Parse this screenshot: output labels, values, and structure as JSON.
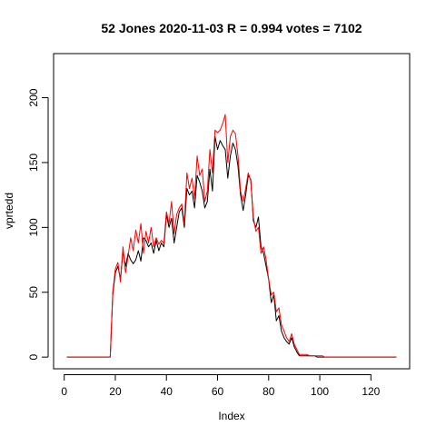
{
  "chart_data": {
    "type": "line",
    "title": "52 Jones 2020-11-03 R = 0.994 votes = 7102",
    "xlabel": "Index",
    "ylabel": "vprtedd",
    "xlim": [
      1,
      130
    ],
    "ylim": [
      0,
      225
    ],
    "xticks": [
      0,
      20,
      40,
      60,
      80,
      100,
      120
    ],
    "yticks": [
      0,
      50,
      100,
      150,
      200
    ],
    "grid": false,
    "legend": "none",
    "series": [
      {
        "color": "#000000",
        "values": [
          0,
          0,
          0,
          0,
          0,
          0,
          0,
          0,
          0,
          0,
          0,
          0,
          0,
          0,
          0,
          0,
          0,
          0,
          48,
          65,
          70,
          60,
          82,
          70,
          80,
          75,
          72,
          75,
          82,
          74,
          92,
          90,
          85,
          88,
          80,
          90,
          82,
          88,
          85,
          110,
          100,
          107,
          88,
          100,
          112,
          115,
          100,
          130,
          125,
          128,
          115,
          140,
          135,
          128,
          115,
          120,
          145,
          128,
          170,
          160,
          167,
          163,
          160,
          138,
          155,
          165,
          160,
          147,
          125,
          113,
          125,
          140,
          137,
          105,
          100,
          108,
          85,
          80,
          70,
          60,
          42,
          48,
          28,
          32,
          20,
          15,
          12,
          10,
          15,
          8,
          4,
          1,
          1,
          1,
          1,
          1,
          1,
          1,
          0,
          0,
          0,
          0,
          0,
          0,
          0,
          0,
          0,
          0,
          0,
          0,
          0,
          0,
          0,
          0,
          0,
          0,
          0,
          0,
          0,
          0,
          0,
          0,
          0,
          0,
          0,
          0,
          0,
          0,
          0,
          0
        ]
      },
      {
        "color": "#ff0000",
        "values": [
          0,
          0,
          0,
          0,
          0,
          0,
          0,
          0,
          0,
          0,
          0,
          0,
          0,
          0,
          0,
          0,
          0,
          0,
          50,
          68,
          73,
          58,
          85,
          65,
          78,
          92,
          82,
          98,
          88,
          103,
          80,
          97,
          88,
          100,
          85,
          92,
          87,
          90,
          88,
          112,
          103,
          120,
          95,
          110,
          115,
          118,
          103,
          142,
          130,
          138,
          122,
          155,
          140,
          145,
          120,
          128,
          160,
          142,
          175,
          173,
          175,
          180,
          187,
          150,
          170,
          175,
          172,
          155,
          128,
          120,
          130,
          142,
          136,
          108,
          97,
          100,
          80,
          85,
          75,
          60,
          48,
          50,
          35,
          38,
          25,
          20,
          15,
          12,
          18,
          10,
          6,
          2,
          2,
          2,
          2,
          1,
          1,
          1,
          1,
          1,
          1,
          0,
          0,
          0,
          0,
          0,
          0,
          0,
          0,
          0,
          0,
          0,
          0,
          0,
          0,
          0,
          0,
          0,
          0,
          0,
          0,
          0,
          0,
          0,
          0,
          0,
          0,
          0,
          0,
          0
        ]
      }
    ]
  }
}
